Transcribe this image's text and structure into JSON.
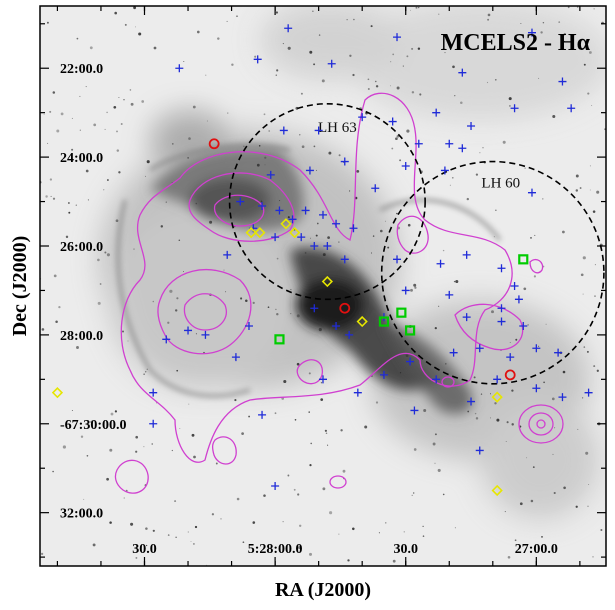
{
  "chart_data": {
    "type": "scatter",
    "title": "MCELS2 - Hα",
    "xlabel": "RA (J2000)",
    "ylabel": "Dec (J2000)",
    "x_ticks": [
      "30.0",
      "5:28:00.0",
      "30.0",
      "27:00.0"
    ],
    "y_ticks": [
      "22:00.0",
      "24:00.0",
      "26:00.0",
      "28:00.0",
      "-67:30:00.0",
      "32:00.0"
    ],
    "x_tick_values_sec": [
      30,
      0,
      -30,
      -60
    ],
    "y_tick_values_arcmin": [
      22,
      24,
      26,
      28,
      30,
      32
    ],
    "xlim_sec_from_5h28m": [
      54,
      -76
    ],
    "ylim_arcmin_below_67d": [
      20.6,
      33.2
    ],
    "background": "MCELS2 H-alpha image, inverted greyscale (dark = bright emission)",
    "clusters": [
      {
        "name": "LH 63",
        "ra_sec": -12.0,
        "dec_arcmin": 25.0,
        "radius_arcmin": 2.2
      },
      {
        "name": "LH 60",
        "ra_sec": -50.0,
        "dec_arcmin": 26.6,
        "radius_arcmin": 2.5
      }
    ],
    "series": [
      {
        "marker": "plus",
        "color": "#1f2bd8",
        "points": [
          [
            -3,
            21.1
          ],
          [
            -28,
            21.3
          ],
          [
            -59,
            21.2
          ],
          [
            4,
            21.8
          ],
          [
            -13,
            21.9
          ],
          [
            -43,
            22.1
          ],
          [
            -66,
            22.3
          ],
          [
            -68,
            22.9
          ],
          [
            -55,
            22.9
          ],
          [
            22,
            22.0
          ],
          [
            -37,
            23.0
          ],
          [
            -27,
            23.2
          ],
          [
            -45,
            23.3
          ],
          [
            -2,
            23.4
          ],
          [
            -10,
            23.4
          ],
          [
            -40,
            23.7
          ],
          [
            -33,
            23.7
          ],
          [
            -43,
            23.8
          ],
          [
            -16,
            24.1
          ],
          [
            -30,
            24.2
          ],
          [
            -39,
            24.3
          ],
          [
            1,
            24.4
          ],
          [
            -23,
            24.7
          ],
          [
            -59,
            24.8
          ],
          [
            8,
            25.0
          ],
          [
            3,
            25.1
          ],
          [
            -1,
            25.2
          ],
          [
            -4,
            25.4
          ],
          [
            -7,
            25.2
          ],
          [
            -11,
            25.3
          ],
          [
            -14,
            25.5
          ],
          [
            5,
            25.6
          ],
          [
            0,
            25.8
          ],
          [
            -18,
            25.6
          ],
          [
            -6,
            25.8
          ],
          [
            -9,
            26.0
          ],
          [
            -12,
            26.0
          ],
          [
            -16,
            26.3
          ],
          [
            11,
            26.2
          ],
          [
            -28,
            26.3
          ],
          [
            -44,
            26.2
          ],
          [
            -38,
            26.4
          ],
          [
            -52,
            26.5
          ],
          [
            -55,
            26.9
          ],
          [
            -56,
            27.2
          ],
          [
            -52,
            27.4
          ],
          [
            -30,
            27.0
          ],
          [
            -40,
            27.1
          ],
          [
            -44,
            27.6
          ],
          [
            -52,
            27.7
          ],
          [
            -57,
            27.8
          ],
          [
            -25,
            27.6
          ],
          [
            -9,
            27.4
          ],
          [
            -14,
            27.8
          ],
          [
            -17,
            28.0
          ],
          [
            6,
            27.8
          ],
          [
            16,
            28.0
          ],
          [
            25,
            28.1
          ],
          [
            20,
            27.9
          ],
          [
            -41,
            28.4
          ],
          [
            -47,
            28.3
          ],
          [
            -54,
            28.5
          ],
          [
            -60,
            28.3
          ],
          [
            -65,
            28.4
          ],
          [
            -31,
            28.6
          ],
          [
            -37,
            29.0
          ],
          [
            -25,
            28.9
          ],
          [
            9,
            28.5
          ],
          [
            -51,
            29.0
          ],
          [
            -60,
            29.2
          ],
          [
            -66,
            29.4
          ],
          [
            -72,
            29.3
          ],
          [
            28,
            29.3
          ],
          [
            -19,
            29.3
          ],
          [
            -11,
            29.0
          ],
          [
            -45,
            29.5
          ],
          [
            3,
            29.8
          ],
          [
            28,
            30.0
          ],
          [
            0,
            31.4
          ],
          [
            -47,
            30.6
          ],
          [
            -32,
            29.7
          ],
          [
            -8,
            24.3
          ],
          [
            -20,
            23.1
          ]
        ]
      },
      {
        "marker": "diamond",
        "color": "#e6e600",
        "points": [
          [
            5.5,
            25.7
          ],
          [
            3.5,
            25.7
          ],
          [
            -2.5,
            25.5
          ],
          [
            -4.5,
            25.7
          ],
          [
            -12,
            26.8
          ],
          [
            -20,
            27.7
          ],
          [
            -51,
            29.4
          ],
          [
            -51,
            31.5
          ],
          [
            50,
            29.3
          ]
        ]
      },
      {
        "marker": "circle",
        "color": "#e01010",
        "points": [
          [
            14,
            23.7
          ],
          [
            -16,
            27.4
          ],
          [
            -54,
            28.9
          ]
        ]
      },
      {
        "marker": "square",
        "color": "#00cc00",
        "points": [
          [
            -57,
            26.3
          ],
          [
            -25,
            27.7
          ],
          [
            -29,
            27.5
          ],
          [
            -31,
            27.9
          ],
          [
            -1,
            28.1
          ]
        ]
      }
    ],
    "contours": {
      "color": "#d040d0",
      "description": "Magenta intensity contours overlaid on the nebula"
    }
  }
}
